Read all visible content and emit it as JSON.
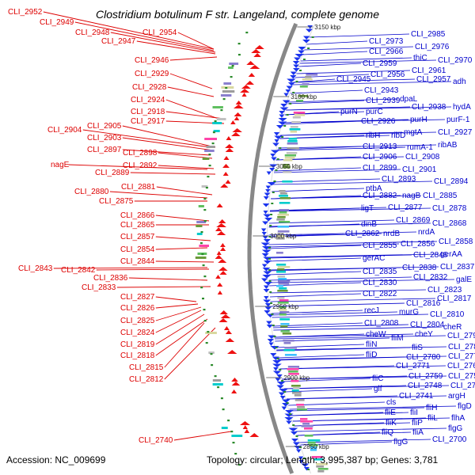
{
  "title": "Clostridium botulinum F str. Langeland, complete genome",
  "footer": {
    "accession": "Accession: NC_009699",
    "topology": "Topology: circular; Length: 3,995,387 bp; Genes: 3,781"
  },
  "colors": {
    "forward_labels": "#0000cc",
    "reverse_labels": "#dd0000",
    "backbone": "#888888",
    "forward_genes": "#1a33ee",
    "reverse_genes": "#ee1111",
    "gc_marks": "#2a8a2a"
  },
  "scale_labels": [
    "3150 kbp",
    "3100 kbp",
    "3050 kbp",
    "3000 kbp",
    "2950 kbp",
    "2900 kbp",
    "2850 kbp"
  ],
  "left_labels": [
    "CLI_2952",
    "CLI_2949",
    "CLI_2948",
    "CLI_2954",
    "CLI_2947",
    "CLI_2946",
    "CLI_2929",
    "CLI_2928",
    "CLI_2924",
    "CLI_2918",
    "CLI_2917",
    "CLI_2904",
    "CLI_2905",
    "CLI_2903",
    "CLI_2897",
    "CLI_2898",
    "nagE",
    "CLI_2892",
    "CLI_2889",
    "CLI_2881",
    "CLI_2880",
    "CLI_2875",
    "CLI_2866",
    "CLI_2865",
    "CLI_2857",
    "CLI_2854",
    "CLI_2844",
    "CLI_2843",
    "CLI_2842",
    "CLI_2836",
    "CLI_2833",
    "CLI_2827",
    "CLI_2826",
    "CLI_2825",
    "CLI_2824",
    "CLI_2819",
    "CLI_2818",
    "CLI_2815",
    "CLI_2812",
    "CLI_2740"
  ],
  "right_labels": [
    "CLI_2985",
    "CLI_2973",
    "CLI_2976",
    "CLI_2966",
    "thiC",
    "CLI_2970",
    "CLI_2959",
    "CLI_2961",
    "CLI_2956",
    "CLI_2945",
    "CLI_2957",
    "adh",
    "CLI_2943",
    "CLI_2939",
    "dpaL",
    "purN",
    "purC",
    "CLI_2938",
    "hydA",
    "CLI_2926",
    "purH",
    "purF-1",
    "mgtA",
    "CLI_2927",
    "ribH",
    "ribD",
    "CLI_2913",
    "rumA-1",
    "ribAB",
    "CLI_2906",
    "CLI_2908",
    "CLI_2899",
    "CLI_2901",
    "CLI_2893",
    "CLI_2894",
    "ptbA",
    "CLI_2882",
    "nagB",
    "CLI_2885",
    "ligT",
    "CLI_2877",
    "CLI_2878",
    "dinB",
    "CLI_2869",
    "CLI_2868",
    "CLI_2862",
    "nrdB",
    "nrdA",
    "CLI_2855",
    "CLI_2856",
    "CLI_2858",
    "gerAC",
    "CLI_2846",
    "gerAA",
    "CLI_2835",
    "CLI_2838",
    "CLI_2837",
    "CLI_2832",
    "CLI_2830",
    "galE",
    "CLI_2823",
    "CLI_2822",
    "CLI_2817",
    "recJ",
    "CLI_2816",
    "murG",
    "CLI_2810",
    "CLI_2808",
    "CLI_2804",
    "cheR",
    "cheW",
    "cheY",
    "CLI_2792",
    "fliM",
    "fliN",
    "fliS",
    "CLI_2782",
    "fliD",
    "CLI_2780",
    "CLI_2775",
    "CLI_2771",
    "CLI_2765",
    "fliC",
    "CLI_2759",
    "CLI_2752",
    "glf",
    "CLI_2748",
    "CLI_2744",
    "CLI_2741",
    "argH",
    "cls",
    "fliH",
    "flgD",
    "fliE",
    "fliI",
    "fliL",
    "flhA",
    "fliK",
    "fliP",
    "flgG",
    "fliQ",
    "fliA",
    "flgG",
    "CLI_2700"
  ]
}
